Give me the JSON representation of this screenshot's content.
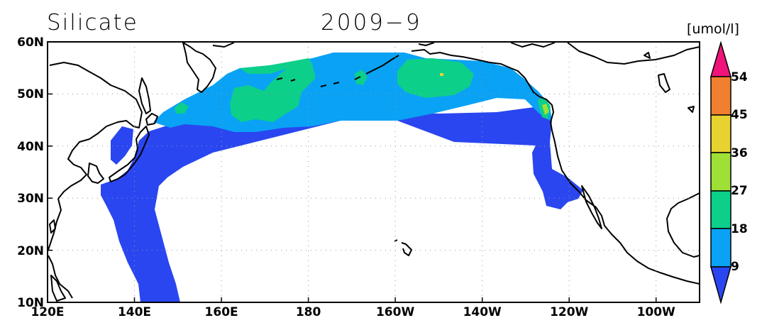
{
  "title": {
    "variable": "Silicate",
    "date": "2009−9"
  },
  "units": "[umol/l]",
  "map": {
    "lon_range": [
      120,
      270
    ],
    "lat_range": [
      10,
      60
    ],
    "x_ticks": [
      {
        "lon": 120,
        "label": "120E"
      },
      {
        "lon": 140,
        "label": "140E"
      },
      {
        "lon": 160,
        "label": "160E"
      },
      {
        "lon": 180,
        "label": "180"
      },
      {
        "lon": 200,
        "label": "160W"
      },
      {
        "lon": 220,
        "label": "140W"
      },
      {
        "lon": 240,
        "label": "120W"
      },
      {
        "lon": 260,
        "label": "100W"
      }
    ],
    "y_ticks": [
      {
        "lat": 10,
        "label": "10N"
      },
      {
        "lat": 20,
        "label": "20N"
      },
      {
        "lat": 30,
        "label": "30N"
      },
      {
        "lat": 40,
        "label": "40N"
      },
      {
        "lat": 50,
        "label": "50N"
      },
      {
        "lat": 60,
        "label": "60N"
      }
    ],
    "grid": "dotted"
  },
  "colorbar": {
    "levels": [
      "9",
      "18",
      "27",
      "36",
      "45",
      "54"
    ],
    "colors": [
      "#2a46f0",
      "#0aa2f5",
      "#0ccf8a",
      "#9ee036",
      "#e8d230",
      "#f08030",
      "#f0147a"
    ],
    "extend": "both"
  },
  "field_colors": {
    "low": "#2a46f0",
    "mid": "#0aa2f5",
    "high": "#0ccf8a",
    "peak": "#e8d230",
    "edge": "#9ee036"
  }
}
